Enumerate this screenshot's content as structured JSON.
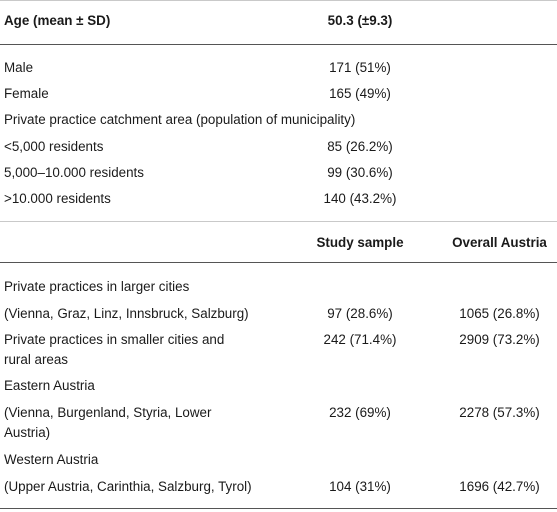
{
  "header": {
    "label": "Age (mean ± SD)",
    "value": "50.3 (±9.3)"
  },
  "demographics": [
    {
      "label": "Male",
      "value": "171 (51%)"
    },
    {
      "label": "Female",
      "value": "165 (49%)"
    },
    {
      "label": "Private practice catchment area (population of municipality)",
      "value": ""
    },
    {
      "label": "<5,000 residents",
      "value": "85 (26.2%)"
    },
    {
      "label": "5,000–10.000 residents",
      "value": "99 (30.6%)"
    },
    {
      "label": ">10.000 residents",
      "value": "140 (43.2%)"
    }
  ],
  "subheader": {
    "label": "",
    "col2": "Study sample",
    "col3": "Overall Austria"
  },
  "regions": {
    "larger_cities_title": "Private practices in larger cities",
    "larger_cities_detail": "(Vienna, Graz, Linz, Innsbruck, Salzburg)",
    "larger_cities_study": "97 (28.6%)",
    "larger_cities_overall": "1065 (26.8%)",
    "smaller_line1": "Private practices in smaller cities and",
    "smaller_line2": "rural areas",
    "smaller_study": "242 (71.4%)",
    "smaller_overall": "2909 (73.2%)",
    "eastern_title": "Eastern Austria",
    "eastern_line1": "(Vienna, Burgenland, Styria, Lower",
    "eastern_line2": "Austria)",
    "eastern_study": "232 (69%)",
    "eastern_overall": "2278 (57.3%)",
    "western_title": "Western Austria",
    "western_detail": "(Upper Austria, Carinthia, Salzburg, Tyrol)",
    "western_study": "104 (31%)",
    "western_overall": "1696 (42.7%)"
  }
}
